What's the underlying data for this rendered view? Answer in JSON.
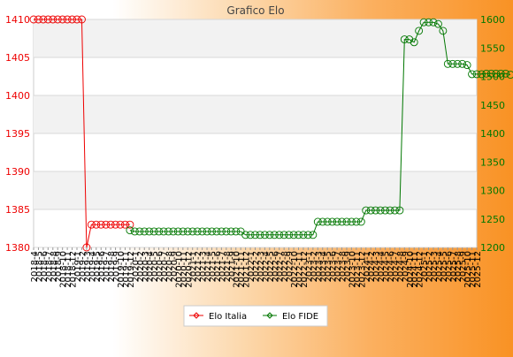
{
  "chart_data": {
    "type": "line",
    "title": "Grafico Elo",
    "left_axis": {
      "ylim": [
        1380,
        1410
      ],
      "ticks": [
        1380,
        1385,
        1390,
        1395,
        1400,
        1405,
        1410
      ],
      "color": "#ee0000"
    },
    "right_axis": {
      "ylim": [
        1200,
        1600
      ],
      "ticks": [
        1200,
        1250,
        1300,
        1350,
        1400,
        1450,
        1500,
        1550,
        1600
      ],
      "color": "#007700"
    },
    "x_labels": [
      "2018-4",
      "2018-5",
      "2018-6",
      "2018-7",
      "2018-8",
      "2018-9",
      "2018-10",
      "2018-11",
      "2018-12",
      "2019-1",
      "2019-2",
      "2019-3",
      "2019-4",
      "2019-5",
      "2019-6",
      "2019-7",
      "2019-8",
      "2019-9",
      "2019-10",
      "2019-11",
      "2019-12",
      "2020-1",
      "2020-2",
      "2020-3",
      "2020-4",
      "2020-5",
      "2020-6",
      "2020-7",
      "2020-8",
      "2020-9",
      "2020-10",
      "2020-11",
      "2020-12",
      "2021-1",
      "2021-2",
      "2021-3",
      "2021-4",
      "2021-5",
      "2021-6",
      "2021-7",
      "2021-8",
      "2021-9",
      "2021-10",
      "2021-11",
      "2021-12",
      "2022-1",
      "2022-2",
      "2022-3",
      "2022-4",
      "2022-5",
      "2022-6",
      "2022-7",
      "2022-8",
      "2022-9",
      "2022-10",
      "2022-11",
      "2022-12",
      "2023-1",
      "2023-2",
      "2023-3",
      "2023-4",
      "2023-5",
      "2023-6",
      "2023-7",
      "2023-8",
      "2023-9",
      "2023-10",
      "2023-11",
      "2023-12",
      "2024-1",
      "2024-2",
      "2024-3",
      "2024-4",
      "2024-5",
      "2024-6",
      "2024-7",
      "2024-8",
      "2024-9",
      "2024-10",
      "2024-11",
      "2024-12",
      "2025-1",
      "2025-2",
      "2025-3",
      "2025-4",
      "2025-5",
      "2025-6",
      "2025-7",
      "2025-8",
      "2025-9",
      "2025-10",
      "2025-11",
      "2025-12"
    ],
    "series": [
      {
        "name": "Elo Italia",
        "axis": "left",
        "color": "#ee0000",
        "values": [
          1410,
          1410,
          1410,
          1410,
          1410,
          1410,
          1410,
          1410,
          1410,
          1410,
          1410,
          1380,
          1383,
          1383,
          1383,
          1383,
          1383,
          1383,
          1383,
          1383,
          1383
        ]
      },
      {
        "name": "Elo FIDE",
        "axis": "right",
        "color": "#007700",
        "start_index": 20,
        "values": [
          1230,
          1228,
          1228,
          1228,
          1228,
          1228,
          1228,
          1228,
          1228,
          1228,
          1228,
          1228,
          1228,
          1228,
          1228,
          1228,
          1228,
          1228,
          1228,
          1228,
          1228,
          1228,
          1228,
          1228,
          1222,
          1222,
          1222,
          1222,
          1222,
          1222,
          1222,
          1222,
          1222,
          1222,
          1222,
          1222,
          1222,
          1222,
          1222,
          1245,
          1245,
          1245,
          1245,
          1245,
          1245,
          1245,
          1245,
          1245,
          1245,
          1265,
          1265,
          1265,
          1265,
          1265,
          1265,
          1265,
          1265,
          1565,
          1565,
          1560,
          1580,
          1595,
          1595,
          1595,
          1592,
          1580,
          1522,
          1522,
          1522,
          1522,
          1520,
          1504,
          1504,
          1504,
          1505,
          1505,
          1505,
          1505,
          1505,
          1503
        ]
      }
    ],
    "legend": {
      "position": "bottom",
      "entries": [
        "Elo Italia",
        "Elo FIDE"
      ]
    },
    "grid": true
  }
}
